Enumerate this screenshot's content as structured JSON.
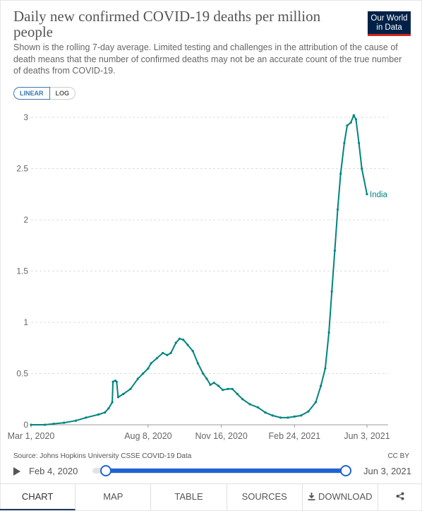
{
  "header": {
    "title": "Daily new confirmed COVID-19 deaths per million people",
    "subtitle": "Shown is the rolling 7-day average. Limited testing and challenges in the attribution of the cause of death means that the number of confirmed deaths may not be an accurate count of the true number of deaths from COVID-19.",
    "logo_line1": "Our World",
    "logo_line2": "in Data"
  },
  "scale_toggle": {
    "linear": "LINEAR",
    "log": "LOG",
    "selected": "LINEAR"
  },
  "chart_data": {
    "type": "line",
    "title": "Daily new confirmed COVID-19 deaths per million people",
    "xlabel": "",
    "ylabel": "",
    "x_ticks": [
      "Mar 1, 2020",
      "Aug 8, 2020",
      "Nov 16, 2020",
      "Feb 24, 2021",
      "Jun 3, 2021"
    ],
    "y_ticks": [
      "0",
      "0.5",
      "1",
      "1.5",
      "2",
      "2.5",
      "3"
    ],
    "ylim": [
      0,
      3.1
    ],
    "xlim": [
      "2020-03-01",
      "2021-06-03"
    ],
    "grid": "horizontal dashed",
    "series": [
      {
        "name": "India",
        "color": "#00847e",
        "points": [
          [
            "2020-03-01",
            0
          ],
          [
            "2020-03-20",
            0
          ],
          [
            "2020-04-01",
            0.01
          ],
          [
            "2020-04-15",
            0.02
          ],
          [
            "2020-05-01",
            0.04
          ],
          [
            "2020-05-15",
            0.07
          ],
          [
            "2020-06-01",
            0.1
          ],
          [
            "2020-06-10",
            0.12
          ],
          [
            "2020-06-15",
            0.16
          ],
          [
            "2020-06-20",
            0.22
          ],
          [
            "2020-06-21",
            0.42
          ],
          [
            "2020-06-24",
            0.43
          ],
          [
            "2020-06-26",
            0.42
          ],
          [
            "2020-06-28",
            0.27
          ],
          [
            "2020-07-05",
            0.3
          ],
          [
            "2020-07-15",
            0.35
          ],
          [
            "2020-07-25",
            0.45
          ],
          [
            "2020-08-01",
            0.5
          ],
          [
            "2020-08-08",
            0.55
          ],
          [
            "2020-08-12",
            0.6
          ],
          [
            "2020-08-20",
            0.65
          ],
          [
            "2020-08-28",
            0.7
          ],
          [
            "2020-09-03",
            0.68
          ],
          [
            "2020-09-08",
            0.7
          ],
          [
            "2020-09-15",
            0.8
          ],
          [
            "2020-09-20",
            0.84
          ],
          [
            "2020-09-25",
            0.83
          ],
          [
            "2020-10-01",
            0.78
          ],
          [
            "2020-10-08",
            0.72
          ],
          [
            "2020-10-15",
            0.6
          ],
          [
            "2020-10-22",
            0.5
          ],
          [
            "2020-10-27",
            0.45
          ],
          [
            "2020-11-01",
            0.39
          ],
          [
            "2020-11-06",
            0.41
          ],
          [
            "2020-11-12",
            0.38
          ],
          [
            "2020-11-18",
            0.34
          ],
          [
            "2020-11-25",
            0.35
          ],
          [
            "2020-12-01",
            0.35
          ],
          [
            "2020-12-08",
            0.3
          ],
          [
            "2020-12-15",
            0.25
          ],
          [
            "2020-12-25",
            0.2
          ],
          [
            "2021-01-05",
            0.17
          ],
          [
            "2021-01-15",
            0.12
          ],
          [
            "2021-01-25",
            0.09
          ],
          [
            "2021-02-05",
            0.07
          ],
          [
            "2021-02-15",
            0.07
          ],
          [
            "2021-02-24",
            0.08
          ],
          [
            "2021-03-05",
            0.09
          ],
          [
            "2021-03-15",
            0.13
          ],
          [
            "2021-03-25",
            0.22
          ],
          [
            "2021-04-01",
            0.38
          ],
          [
            "2021-04-07",
            0.55
          ],
          [
            "2021-04-12",
            0.9
          ],
          [
            "2021-04-16",
            1.3
          ],
          [
            "2021-04-20",
            1.7
          ],
          [
            "2021-04-24",
            2.1
          ],
          [
            "2021-04-28",
            2.45
          ],
          [
            "2021-05-03",
            2.75
          ],
          [
            "2021-05-07",
            2.92
          ],
          [
            "2021-05-12",
            2.95
          ],
          [
            "2021-05-16",
            3.02
          ],
          [
            "2021-05-19",
            2.98
          ],
          [
            "2021-05-23",
            2.75
          ],
          [
            "2021-05-27",
            2.5
          ],
          [
            "2021-06-03",
            2.25
          ]
        ]
      }
    ],
    "source": "Source: Johns Hopkins University CSSE COVID-19 Data",
    "license": "CC BY"
  },
  "timeline": {
    "start_label": "Feb 4, 2020",
    "end_label": "Jun 3, 2021"
  },
  "tabs": {
    "chart": "CHART",
    "map": "MAP",
    "table": "TABLE",
    "sources": "SOURCES",
    "download": "DOWNLOAD"
  }
}
